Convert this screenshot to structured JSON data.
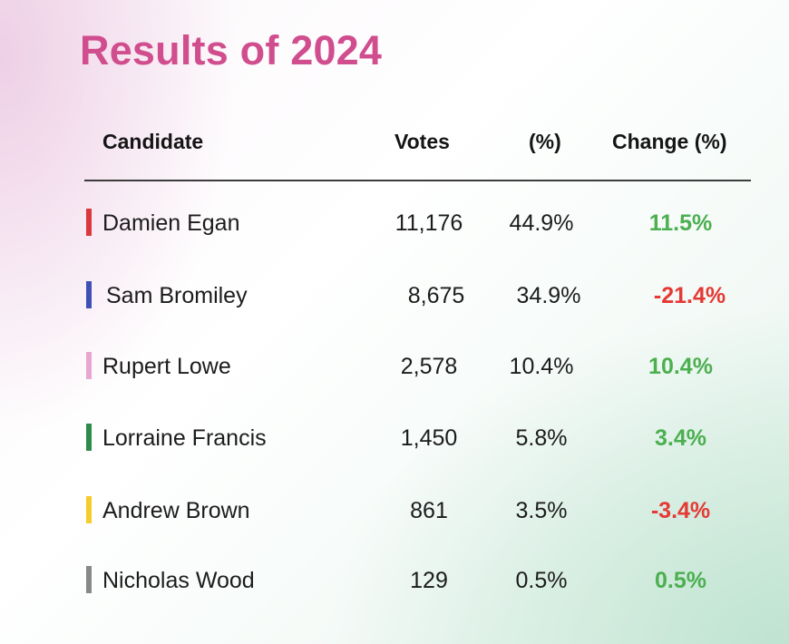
{
  "title": "Results of 2024",
  "headers": {
    "candidate": "Candidate",
    "votes": "Votes",
    "percent": "(%)",
    "change": "Change (%)"
  },
  "rows": [
    {
      "candidate": "Damien Egan",
      "votes": "11,176",
      "percent": "44.9%",
      "change": "11.5%",
      "color": "#d9383c",
      "change_color": "#4caf50"
    },
    {
      "candidate": "Sam Bromiley",
      "votes": "8,675",
      "percent": "34.9%",
      "change": "-21.4%",
      "color": "#3f51b5",
      "change_color": "#e53935"
    },
    {
      "candidate": "Rupert Lowe",
      "votes": "2,578",
      "percent": "10.4%",
      "change": "10.4%",
      "color": "#e7a7cf",
      "change_color": "#4caf50"
    },
    {
      "candidate": "Lorraine Francis",
      "votes": "1,450",
      "percent": "5.8%",
      "change": "3.4%",
      "color": "#2e8b4c",
      "change_color": "#4caf50"
    },
    {
      "candidate": "Andrew Brown",
      "votes": "861",
      "percent": "3.5%",
      "change": "-3.4%",
      "color": "#f5cc2a",
      "change_color": "#e53935"
    },
    {
      "candidate": "Nicholas Wood",
      "votes": "129",
      "percent": "0.5%",
      "change": "0.5%",
      "color": "#888888",
      "change_color": "#4caf50"
    }
  ]
}
